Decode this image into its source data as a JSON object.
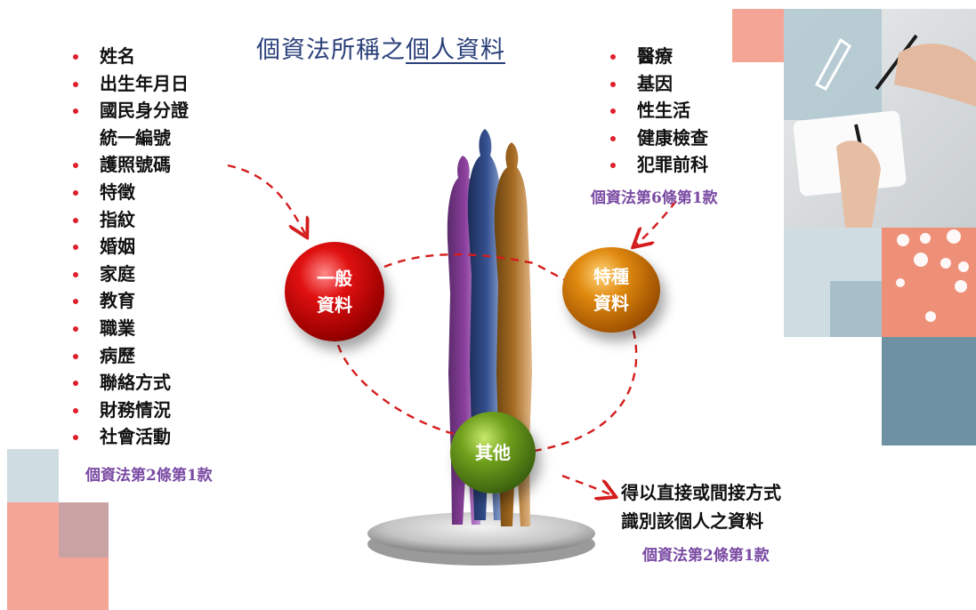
{
  "title": {
    "prefix": "個資法所稱之",
    "emphasis": "個人資料"
  },
  "general_data": {
    "items": [
      "姓名",
      "出生年月日",
      "國民身分證",
      "統一編號",
      "護照號碼",
      "特徵",
      "指紋",
      "婚姻",
      "家庭",
      "教育",
      "職業",
      "病歷",
      "聯絡方式",
      "財務情況",
      "社會活動"
    ],
    "law": "個資法第2條第1款"
  },
  "special_data": {
    "items": [
      "醫療",
      "基因",
      "性生活",
      "健康檢查",
      "犯罪前科"
    ],
    "law": "個資法第6條第1款"
  },
  "nodes": {
    "general": {
      "line1": "一般",
      "line2": "資料"
    },
    "special": {
      "line1": "特種",
      "line2": "資料"
    },
    "other": {
      "label": "其他"
    }
  },
  "other_data": {
    "line1": "得以直接或間接方式",
    "line2": "識別該個人之資料",
    "law": "個資法第2條第1款"
  },
  "colors": {
    "bullet": "#e0202a",
    "law_text": "#7a4aa3",
    "title": "#2a3f7a",
    "dashed": "#d41c1c",
    "salmon": "#f4a596",
    "slate": "#6e92a3"
  }
}
